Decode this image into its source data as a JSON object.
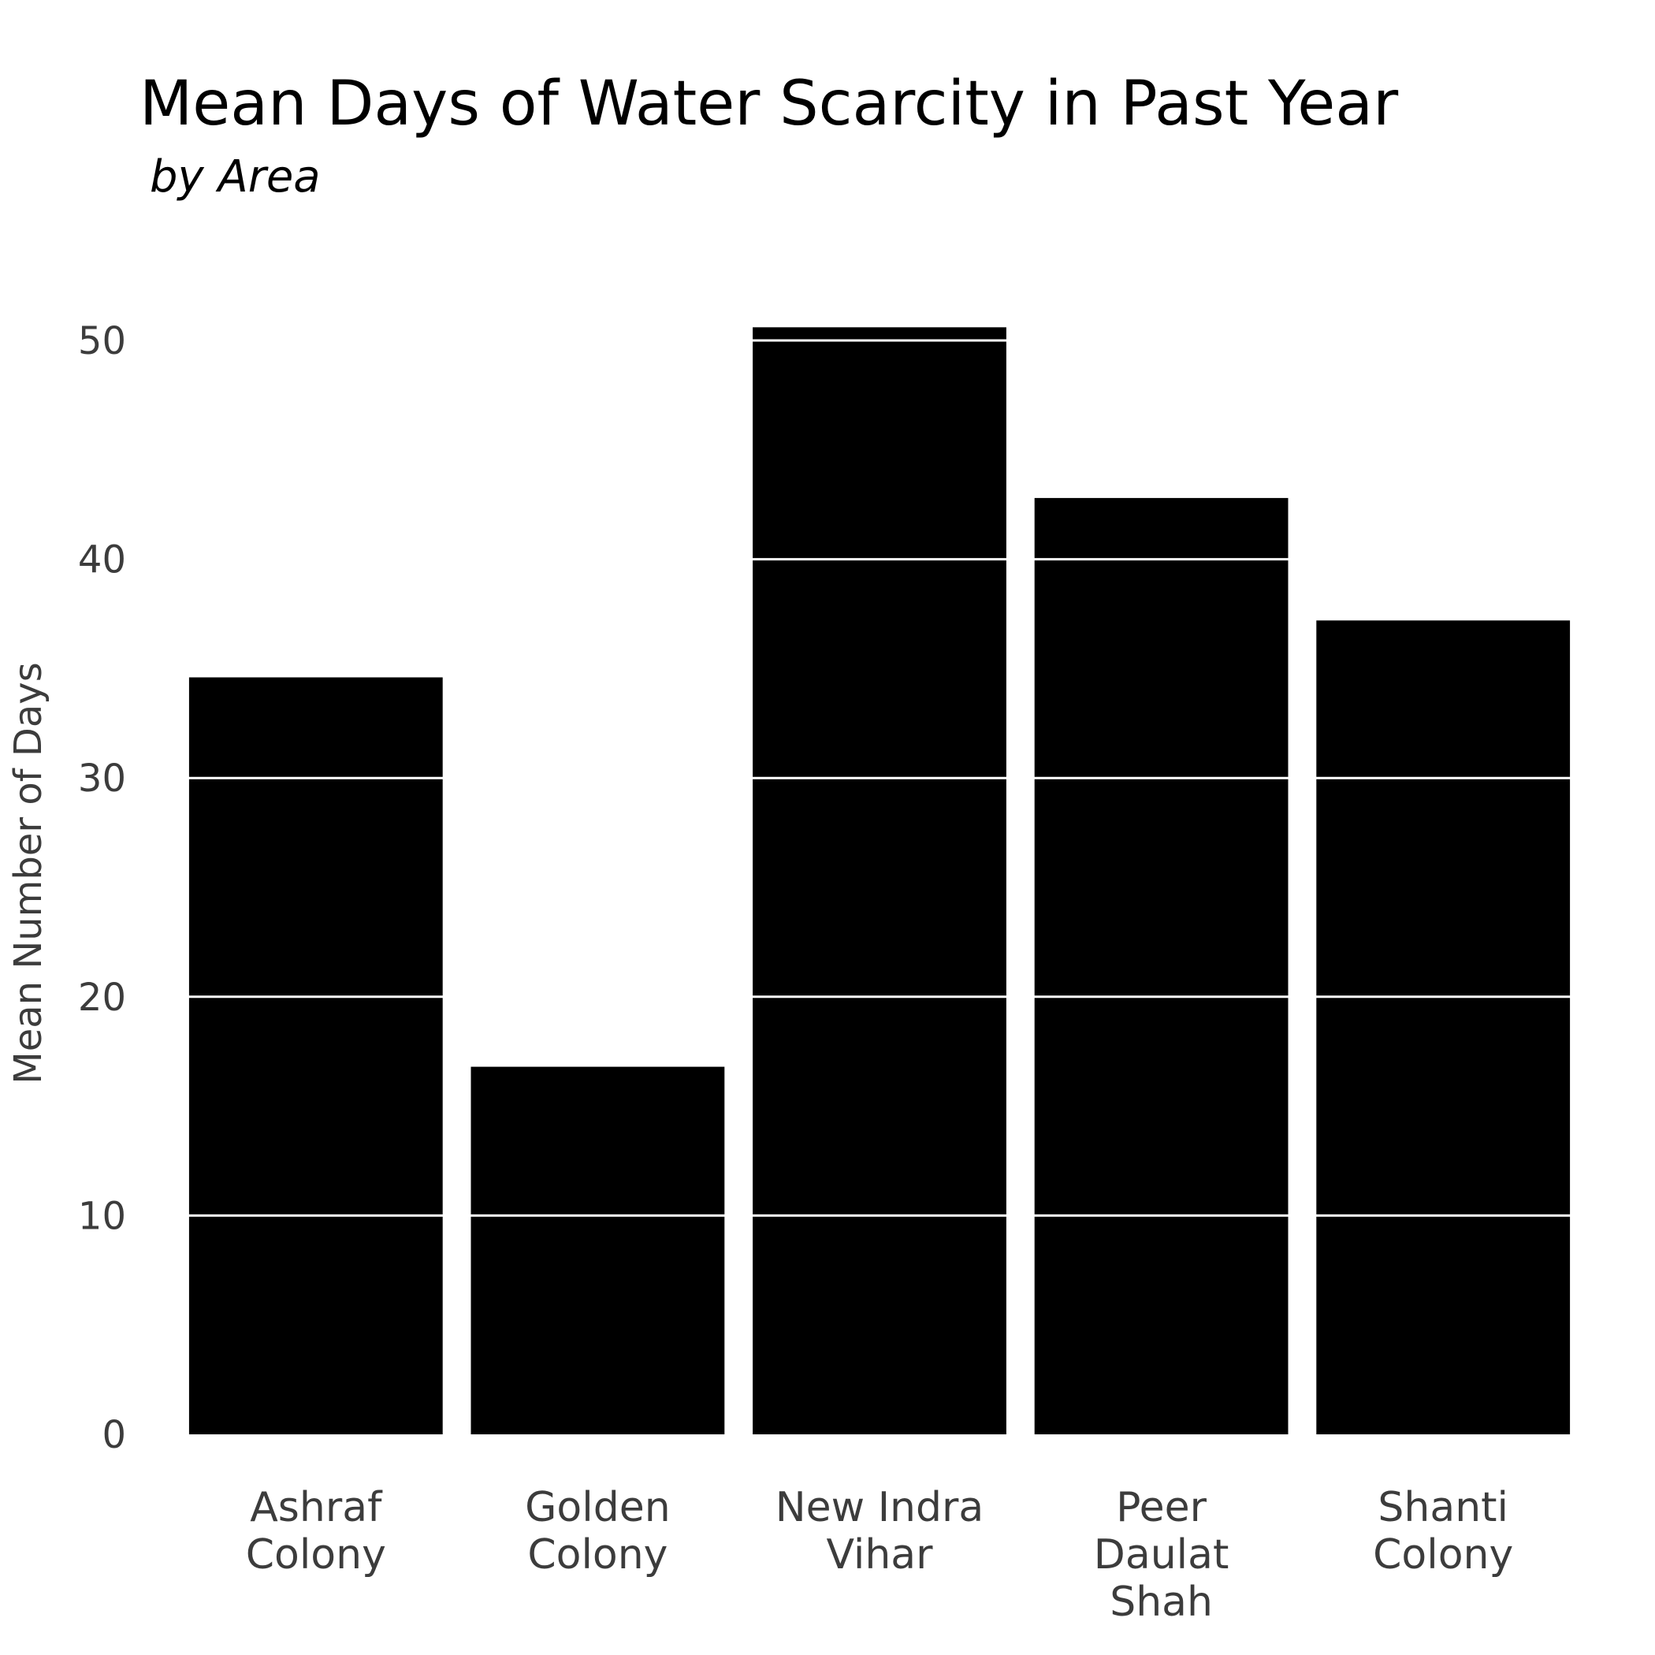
{
  "chart_data": {
    "type": "bar",
    "title": "Mean Days of Water Scarcity in Past Year",
    "subtitle": "by Area",
    "xlabel": "",
    "ylabel": "Mean Number of Days",
    "categories": [
      [
        "Ashraf",
        "Colony"
      ],
      [
        "Golden",
        "Colony"
      ],
      [
        "New Indra",
        "Vihar"
      ],
      [
        "Peer",
        "Daulat",
        "Shah"
      ],
      [
        "Shanti",
        "Colony"
      ]
    ],
    "values": [
      34.6,
      16.8,
      50.6,
      42.8,
      37.2
    ],
    "ylim": [
      0,
      50.6
    ],
    "yticks": [
      0,
      10,
      20,
      30,
      40,
      50
    ],
    "grid": true,
    "grid_placement": "over bars",
    "bar_color": "#000000",
    "grid_color": "#ffffff",
    "text_color": "#3c3c3c",
    "background": "#ffffff"
  }
}
